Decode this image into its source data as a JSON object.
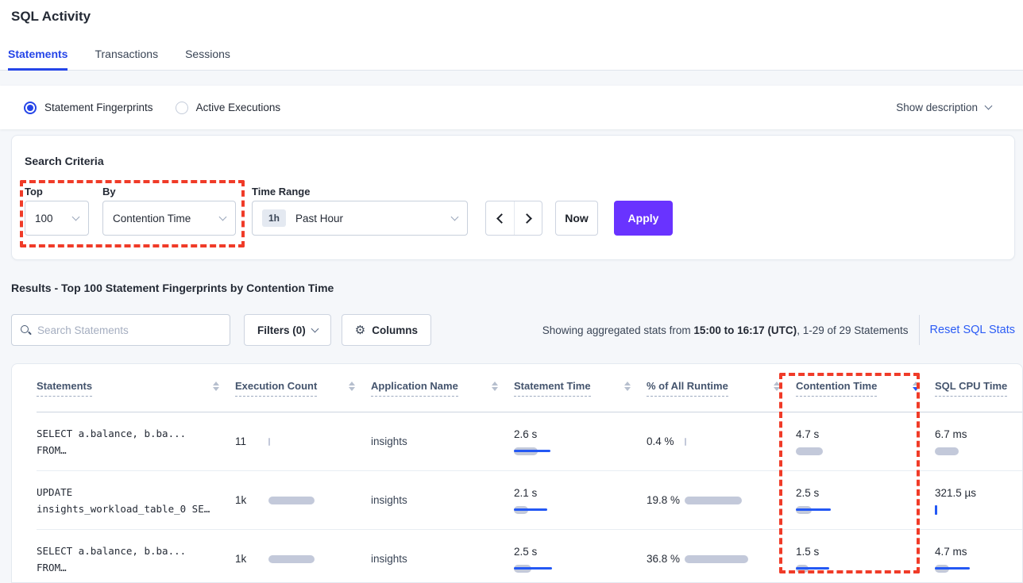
{
  "page_title": "SQL Activity",
  "tabs": [
    {
      "label": "Statements",
      "active": true
    },
    {
      "label": "Transactions",
      "active": false
    },
    {
      "label": "Sessions",
      "active": false
    }
  ],
  "view_toggle": {
    "options": [
      {
        "label": "Statement Fingerprints",
        "selected": true
      },
      {
        "label": "Active Executions",
        "selected": false
      }
    ],
    "show_description_label": "Show description"
  },
  "search_criteria": {
    "title": "Search Criteria",
    "top_label": "Top",
    "top_value": "100",
    "by_label": "By",
    "by_value": "Contention Time",
    "time_range_label": "Time Range",
    "time_range_badge": "1h",
    "time_range_value": "Past Hour",
    "now_label": "Now",
    "apply_label": "Apply"
  },
  "results": {
    "heading": "Results - Top 100 Statement Fingerprints by Contention Time",
    "search_placeholder": "Search Statements",
    "filters_label": "Filters (0)",
    "columns_label": "Columns",
    "stats_prefix": "Showing aggregated stats from ",
    "stats_range": "15:00 to 16:17 (UTC)",
    "stats_suffix": ", 1-29 of 29 Statements",
    "reset_link": "Reset SQL Stats"
  },
  "table": {
    "columns": [
      {
        "label": "Statements",
        "sort": "none"
      },
      {
        "label": "Execution Count",
        "sort": "none"
      },
      {
        "label": "Application Name",
        "sort": "none"
      },
      {
        "label": "Statement Time",
        "sort": "none"
      },
      {
        "label": "% of All Runtime",
        "sort": "none"
      },
      {
        "label": "Contention Time",
        "sort": "desc"
      },
      {
        "label": "SQL CPU Time",
        "sort": "hidden"
      }
    ],
    "rows": [
      {
        "statement": [
          "SELECT a.balance, b.ba...",
          "FROM…"
        ],
        "execution_count": {
          "text": "11",
          "bar": 2,
          "line": 0
        },
        "application": "insights",
        "statement_time": {
          "text": "2.6 s",
          "bar": 30,
          "line": 46
        },
        "pct_runtime": {
          "text": "0.4 %",
          "bar": 2,
          "line": 0
        },
        "contention_time": {
          "text": "4.7 s",
          "bar": 34,
          "line": 0
        },
        "sql_cpu_time": {
          "text": "6.7 ms",
          "bar": 30,
          "line": 0
        }
      },
      {
        "statement": [
          "UPDATE",
          "insights_workload_table_0 SE…"
        ],
        "execution_count": {
          "text": "1k",
          "bar": 58,
          "line": 0
        },
        "application": "insights",
        "statement_time": {
          "text": "2.1 s",
          "bar": 18,
          "line": 42
        },
        "pct_runtime": {
          "text": "19.8 %",
          "bar": 72,
          "line": 0
        },
        "contention_time": {
          "text": "2.5 s",
          "bar": 20,
          "line": 44
        },
        "sql_cpu_time": {
          "text": "321.5 µs",
          "bar": 0,
          "line": 0,
          "tick": true
        }
      },
      {
        "statement": [
          "SELECT a.balance, b.ba...",
          "FROM…"
        ],
        "execution_count": {
          "text": "1k",
          "bar": 58,
          "line": 0
        },
        "application": "insights",
        "statement_time": {
          "text": "2.5 s",
          "bar": 22,
          "line": 48
        },
        "pct_runtime": {
          "text": "36.8 %",
          "bar": 80,
          "line": 0
        },
        "contention_time": {
          "text": "1.5 s",
          "bar": 16,
          "line": 42
        },
        "sql_cpu_time": {
          "text": "4.7 ms",
          "bar": 18,
          "line": 44
        }
      }
    ]
  },
  "colors": {
    "accent_blue": "#2545e8",
    "link_blue": "#2b5cf5",
    "apply_purple": "#6933ff",
    "bar_gray": "#c3c9da",
    "bar_blue": "#2458f4",
    "annotation_red": "#f03b28",
    "page_background": "#f5f7fa"
  }
}
